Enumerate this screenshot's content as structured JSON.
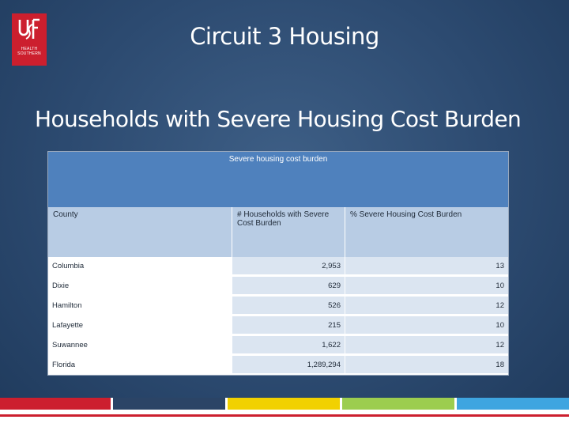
{
  "logo": {
    "text": "USF",
    "sub_line1": "HEALTH",
    "sub_line2": "SOUTHERN"
  },
  "header": {
    "title": "Circuit 3 Housing"
  },
  "slide": {
    "title": "Households with Severe Housing Cost Burden"
  },
  "table": {
    "caption": "Severe housing cost burden",
    "columns": [
      "County",
      "# Households with Severe Cost Burden",
      "% Severe Housing Cost Burden"
    ],
    "rows": [
      {
        "county": "Columbia",
        "households": "2,953",
        "percent": "13"
      },
      {
        "county": "Dixie",
        "households": "629",
        "percent": "10"
      },
      {
        "county": "Hamilton",
        "households": "526",
        "percent": "12"
      },
      {
        "county": "Lafayette",
        "households": "215",
        "percent": "10"
      },
      {
        "county": "Suwannee",
        "households": "1,622",
        "percent": "12"
      },
      {
        "county": "Florida",
        "households": "1,289,294",
        "percent": "18"
      }
    ]
  },
  "colors": {
    "background": "#2c4a70",
    "brand_red": "#cc1f2e",
    "table_caption": "#4f81bd",
    "table_header": "#b8cce4",
    "table_cell": "#dbe5f1",
    "bar_navy": "#2b4466",
    "bar_yellow": "#f1d100",
    "bar_green": "#9ccd4f",
    "bar_blue": "#3ea5e0"
  }
}
